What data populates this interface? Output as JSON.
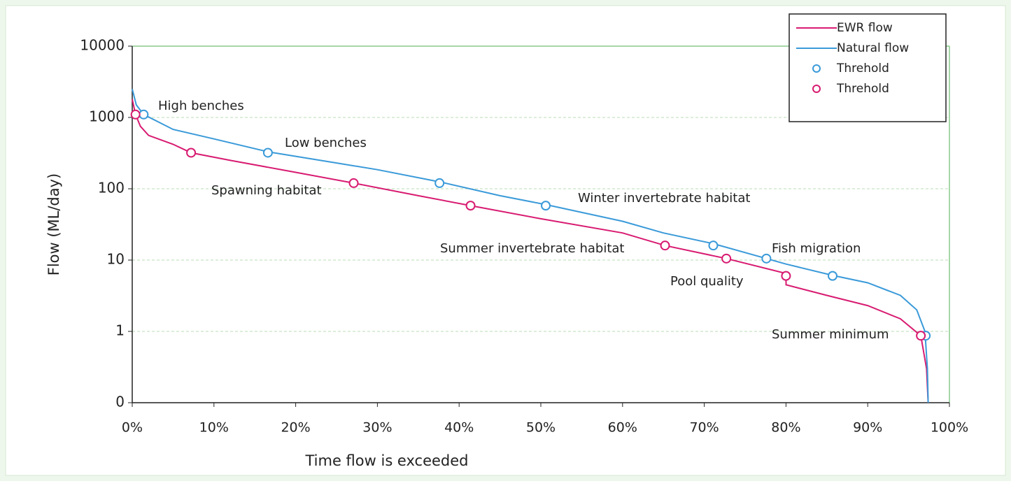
{
  "chart_data": {
    "type": "line",
    "xlabel": "Time flow is exceeded",
    "ylabel": "Flow (ML/day)",
    "log_y": true,
    "grid": true,
    "legend": "upper right",
    "xlim": [
      0,
      100
    ],
    "xticks": [
      {
        "value": 0,
        "label": "0%"
      },
      {
        "value": 10,
        "label": "10%"
      },
      {
        "value": 20,
        "label": "20%"
      },
      {
        "value": 30,
        "label": "30%"
      },
      {
        "value": 40,
        "label": "40%"
      },
      {
        "value": 50,
        "label": "50%"
      },
      {
        "value": 60,
        "label": "60%"
      },
      {
        "value": 70,
        "label": "70%"
      },
      {
        "value": 80,
        "label": "80%"
      },
      {
        "value": 90,
        "label": "90%"
      },
      {
        "value": 100,
        "label": "100%"
      }
    ],
    "ylim": [
      0.1,
      10000
    ],
    "yticks": [
      {
        "value": 0.1,
        "label": "0"
      },
      1,
      10,
      100,
      1000,
      10000
    ],
    "series": [
      {
        "name": "EWR flow",
        "color": "#d81b71",
        "mode": "line",
        "x": [
          0,
          0.4,
          1,
          2,
          5,
          7.2,
          12,
          20,
          27.1,
          35,
          41.4,
          50,
          60,
          65.2,
          72.7,
          80,
          80.01,
          85,
          90,
          94,
          96.5,
          97.2,
          97.4
        ],
        "values": [
          1800,
          1100,
          750,
          560,
          420,
          320,
          250,
          170,
          120,
          80,
          58,
          38,
          24,
          16,
          10.5,
          6.5,
          4.5,
          3.2,
          2.3,
          1.5,
          0.87,
          0.3,
          0.1
        ]
      },
      {
        "name": "Natural flow",
        "color": "#3a9ad9",
        "mode": "line",
        "x": [
          0,
          0.5,
          1.4,
          5,
          10,
          16.6,
          25,
          30,
          37.6,
          45,
          50.6,
          60,
          65,
          71.1,
          77.6,
          80,
          85.7,
          90,
          94,
          96,
          97,
          97.3,
          97.4
        ],
        "values": [
          2500,
          1500,
          1100,
          680,
          500,
          330,
          230,
          185,
          125,
          80,
          60,
          35,
          24,
          17,
          10.5,
          8.8,
          6.1,
          4.8,
          3.2,
          2,
          1,
          0.3,
          0.1
        ]
      },
      {
        "name": "Threhold",
        "color": "#3a9ad9",
        "mode": "markers",
        "x": [
          1.4,
          16.6,
          37.6,
          50.6,
          71.1,
          77.6,
          85.7,
          97.1
        ],
        "values": [
          1100,
          320,
          120,
          58,
          16,
          10.5,
          6,
          0.87
        ]
      },
      {
        "name": "Threhold",
        "color": "#d81b71",
        "mode": "markers",
        "x": [
          0.4,
          7.2,
          27.1,
          41.4,
          65.2,
          72.7,
          80,
          96.5
        ],
        "values": [
          1100,
          320,
          120,
          58,
          16,
          10.5,
          6,
          0.87
        ]
      }
    ],
    "annotations": [
      "High benches",
      "Low benches",
      "Spawning habitat",
      "Winter invertebrate habitat",
      "Summer invertebrate habitat",
      "Fish migration",
      "Pool quality",
      "Summer minimum"
    ]
  }
}
